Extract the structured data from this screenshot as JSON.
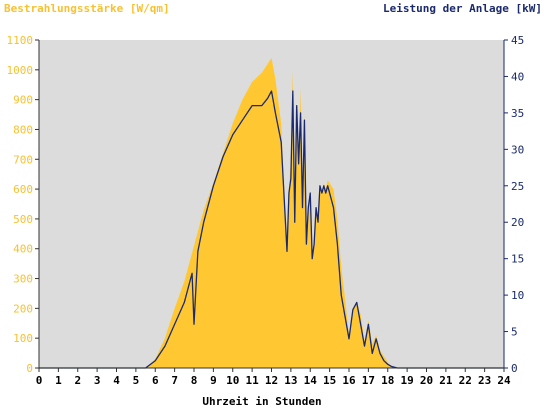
{
  "chart_data": {
    "type": "area",
    "y_left_title": "Bestrahlungsstärke [W/qm]",
    "y_right_title": "Leistung der Anlage [kW]",
    "xlabel": "Uhrzeit in Stunden",
    "x_ticks": [
      "0",
      "1",
      "2",
      "3",
      "4",
      "5",
      "6",
      "7",
      "8",
      "9",
      "10",
      "11",
      "12",
      "13",
      "14",
      "15",
      "16",
      "17",
      "18",
      "19",
      "20",
      "21",
      "22",
      "23",
      "24"
    ],
    "y_left_ticks": [
      "0",
      "100",
      "200",
      "300",
      "400",
      "500",
      "600",
      "700",
      "800",
      "900",
      "1000",
      "1100"
    ],
    "y_right_ticks": [
      "0",
      "5",
      "10",
      "15",
      "20",
      "25",
      "30",
      "35",
      "40",
      "45"
    ],
    "xlim": [
      0,
      24
    ],
    "ylim_left": [
      0,
      1100
    ],
    "ylim_right": [
      0,
      45
    ],
    "grid": false,
    "series": [
      {
        "axis": "left",
        "style": "filled-area",
        "color": "#ffc832",
        "x": [
          0,
          5.5,
          6.0,
          6.5,
          7.0,
          7.5,
          8.0,
          8.5,
          9.0,
          9.5,
          10.0,
          10.5,
          11.0,
          11.5,
          11.8,
          12.0,
          12.2,
          12.5,
          12.8,
          12.9,
          13.0,
          13.1,
          13.2,
          13.3,
          13.4,
          13.5,
          13.6,
          13.7,
          13.8,
          13.9,
          14.0,
          14.1,
          14.2,
          14.3,
          14.4,
          14.5,
          14.6,
          14.7,
          14.8,
          14.9,
          15.0,
          15.2,
          15.4,
          15.6,
          15.8,
          16.0,
          16.2,
          16.4,
          16.6,
          16.8,
          17.0,
          17.2,
          17.4,
          17.6,
          17.8,
          18.0,
          18.2,
          18.5,
          18.8,
          19.0,
          19.2,
          24
        ],
        "y": [
          0,
          0,
          30,
          100,
          200,
          290,
          410,
          530,
          620,
          720,
          820,
          900,
          960,
          990,
          1020,
          1040,
          970,
          820,
          400,
          600,
          700,
          1000,
          520,
          880,
          700,
          940,
          560,
          850,
          420,
          510,
          580,
          380,
          420,
          520,
          480,
          600,
          580,
          620,
          600,
          630,
          620,
          600,
          500,
          340,
          230,
          110,
          200,
          220,
          180,
          90,
          160,
          80,
          110,
          60,
          40,
          20,
          5,
          0,
          0,
          0,
          0,
          0
        ]
      },
      {
        "axis": "right",
        "style": "line",
        "color": "#1a2a6c",
        "x": [
          0,
          5.5,
          6.0,
          6.5,
          7.0,
          7.5,
          7.9,
          8.0,
          8.2,
          8.5,
          9.0,
          9.5,
          10.0,
          10.5,
          11.0,
          11.5,
          11.8,
          12.0,
          12.2,
          12.5,
          12.8,
          12.9,
          13.0,
          13.1,
          13.2,
          13.3,
          13.4,
          13.5,
          13.6,
          13.7,
          13.8,
          13.9,
          14.0,
          14.1,
          14.2,
          14.3,
          14.4,
          14.5,
          14.6,
          14.7,
          14.8,
          14.9,
          15.0,
          15.2,
          15.4,
          15.6,
          15.8,
          16.0,
          16.2,
          16.4,
          16.6,
          16.8,
          17.0,
          17.2,
          17.4,
          17.6,
          17.8,
          18.0,
          18.2,
          18.5,
          18.8,
          19.0,
          19.2,
          24
        ],
        "y": [
          0,
          0,
          1,
          3,
          6,
          9,
          13,
          6,
          16,
          20,
          25,
          29,
          32,
          34,
          36,
          36,
          37,
          38,
          35,
          31,
          16,
          24,
          26,
          38,
          20,
          36,
          28,
          35,
          22,
          34,
          17,
          22,
          24,
          15,
          17,
          22,
          20,
          25,
          24,
          25,
          24,
          25,
          24,
          22,
          17,
          10,
          7,
          4,
          8,
          9,
          6,
          3,
          6,
          2,
          4,
          2,
          1,
          0.5,
          0.2,
          0,
          0,
          0,
          0,
          0
        ]
      }
    ]
  }
}
